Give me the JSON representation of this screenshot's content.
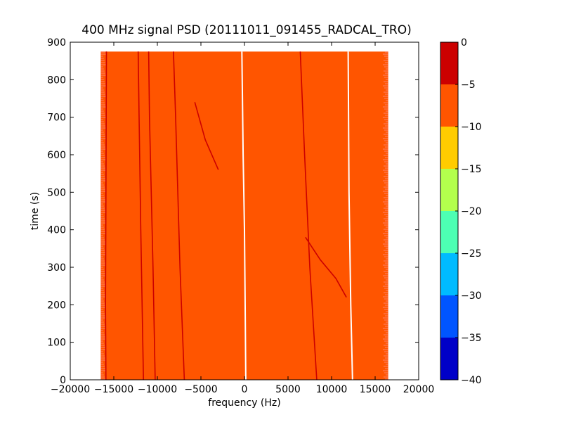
{
  "chart_data": {
    "type": "heatmap",
    "title": "400 MHz signal PSD (20111011_091455_RADCAL_TRO)",
    "xlabel": "frequency (Hz)",
    "ylabel": "time (s)",
    "xlim": [
      -20000,
      20000
    ],
    "ylim": [
      0,
      900
    ],
    "x_ticks": [
      -20000,
      -15000,
      -10000,
      -5000,
      0,
      5000,
      10000,
      15000,
      20000
    ],
    "x_tick_labels": [
      "−20000",
      "−15000",
      "−10000",
      "−5000",
      "0",
      "5000",
      "10000",
      "15000",
      "20000"
    ],
    "y_ticks": [
      0,
      100,
      200,
      300,
      400,
      500,
      600,
      700,
      800,
      900
    ],
    "y_tick_labels": [
      "0",
      "100",
      "200",
      "300",
      "400",
      "500",
      "600",
      "700",
      "800",
      "900"
    ],
    "data_extent": {
      "x": [
        -16500,
        16500
      ],
      "y": [
        0,
        875
      ]
    },
    "background_level_range": [
      -10,
      -5
    ],
    "background_color": "#ff5500",
    "grid": false,
    "colorbar": {
      "levels": [
        0,
        -5,
        -10,
        -15,
        -20,
        -25,
        -30,
        -35,
        -40
      ],
      "tick_labels": [
        "0",
        "−5",
        "−10",
        "−15",
        "−20",
        "−25",
        "−30",
        "−35",
        "−40"
      ],
      "bands": [
        {
          "range": [
            -5,
            0
          ],
          "color": "#cc0000"
        },
        {
          "range": [
            -10,
            -5
          ],
          "color": "#ff5500"
        },
        {
          "range": [
            -15,
            -10
          ],
          "color": "#ffcc00"
        },
        {
          "range": [
            -20,
            -15
          ],
          "color": "#b3ff4d"
        },
        {
          "range": [
            -25,
            -20
          ],
          "color": "#4dffb3"
        },
        {
          "range": [
            -30,
            -25
          ],
          "color": "#00bbff"
        },
        {
          "range": [
            -35,
            -30
          ],
          "color": "#0055ff"
        },
        {
          "range": [
            -40,
            -35
          ],
          "color": "#0000c8"
        }
      ]
    },
    "traces": [
      {
        "color": "#cc0000",
        "points": [
          [
            -15900,
            0
          ],
          [
            -15950,
            200
          ],
          [
            -15900,
            500
          ],
          [
            -15850,
            875
          ]
        ]
      },
      {
        "color": "#cc0000",
        "points": [
          [
            -11600,
            0
          ],
          [
            -11900,
            400
          ],
          [
            -12100,
            700
          ],
          [
            -12200,
            875
          ]
        ]
      },
      {
        "color": "#cc0000",
        "points": [
          [
            -10250,
            0
          ],
          [
            -10500,
            300
          ],
          [
            -10900,
            700
          ],
          [
            -11000,
            875
          ]
        ]
      },
      {
        "color": "#cc0000",
        "points": [
          [
            -6900,
            0
          ],
          [
            -7400,
            300
          ],
          [
            -7900,
            700
          ],
          [
            -8150,
            875
          ]
        ]
      },
      {
        "color": "#ffffff",
        "points": [
          [
            150,
            0
          ],
          [
            100,
            150
          ],
          [
            0,
            400
          ],
          [
            -150,
            600
          ],
          [
            -300,
            875
          ]
        ]
      },
      {
        "color": "#cc0000",
        "points": [
          [
            8300,
            0
          ],
          [
            7500,
            300
          ],
          [
            6900,
            600
          ],
          [
            6400,
            875
          ]
        ]
      },
      {
        "color": "#ffffff",
        "points": [
          [
            12400,
            0
          ],
          [
            12200,
            200
          ],
          [
            12000,
            500
          ],
          [
            11900,
            875
          ]
        ]
      },
      {
        "color": "#cc0000",
        "points": [
          [
            7000,
            380
          ],
          [
            8700,
            320
          ],
          [
            10500,
            270
          ],
          [
            11700,
            220
          ]
        ]
      },
      {
        "color": "#cc0000",
        "points": [
          [
            -5700,
            740
          ],
          [
            -4500,
            640
          ],
          [
            -3000,
            560
          ]
        ]
      }
    ]
  }
}
